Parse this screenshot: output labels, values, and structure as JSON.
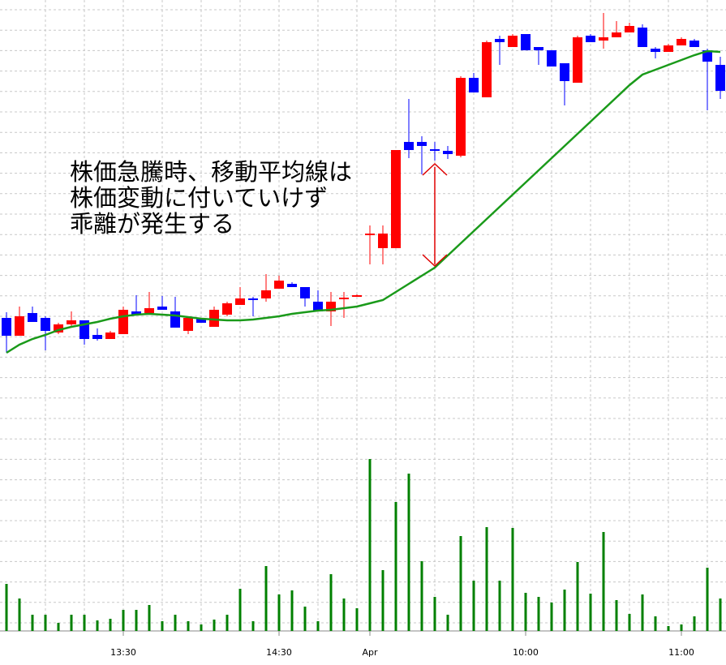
{
  "chart_data": {
    "type": "candlestick",
    "categories": [
      null,
      null,
      null,
      null,
      null,
      null,
      null,
      null,
      null,
      "13:30",
      null,
      null,
      null,
      null,
      null,
      null,
      null,
      null,
      null,
      null,
      null,
      "14:30",
      null,
      null,
      null,
      null,
      null,
      null,
      "Apr",
      null,
      null,
      null,
      null,
      null,
      null,
      null,
      null,
      null,
      null,
      null,
      "10:00",
      null,
      null,
      null,
      null,
      null,
      null,
      null,
      null,
      null,
      null,
      null,
      "11:00",
      null,
      null,
      null
    ],
    "open": [
      138,
      116,
      144,
      138,
      120,
      130,
      135,
      117,
      112,
      118,
      146,
      144,
      152,
      146,
      122,
      137,
      127,
      142,
      154,
      162,
      162,
      174,
      180,
      176,
      158,
      146,
      161,
      165,
      240,
      224,
      224,
      355,
      355,
      346,
      344,
      338,
      434,
      410,
      482,
      472,
      488,
      472,
      468,
      452,
      428,
      486,
      480,
      484,
      490,
      496,
      470,
      466,
      474,
      480,
      468,
      450
    ],
    "high": [
      145,
      152,
      152,
      140,
      132,
      146,
      135,
      125,
      122,
      152,
      166,
      170,
      165,
      164,
      138,
      137,
      152,
      158,
      176,
      164,
      192,
      190,
      182,
      176,
      172,
      170,
      170,
      167,
      252,
      252,
      345,
      408,
      362,
      355,
      350,
      436,
      440,
      480,
      486,
      488,
      488,
      472,
      468,
      452,
      486,
      488,
      514,
      504,
      502,
      500,
      472,
      476,
      484,
      482,
      470,
      460
    ],
    "low": [
      95,
      116,
      133,
      98,
      118,
      126,
      105,
      110,
      112,
      118,
      142,
      144,
      148,
      126,
      118,
      132,
      127,
      140,
      154,
      140,
      158,
      174,
      176,
      152,
      146,
      128,
      138,
      164,
      204,
      204,
      224,
      335,
      315,
      332,
      334,
      336,
      416,
      410,
      450,
      472,
      468,
      450,
      448,
      400,
      428,
      478,
      470,
      484,
      490,
      472,
      458,
      466,
      474,
      472,
      394,
      408
    ],
    "close": [
      116,
      140,
      133,
      122,
      130,
      135,
      112,
      112,
      120,
      148,
      142,
      150,
      148,
      126,
      138,
      132,
      148,
      156,
      162,
      160,
      172,
      184,
      176,
      162,
      146,
      158,
      163,
      166,
      242,
      242,
      345,
      345,
      350,
      344,
      340,
      434,
      416,
      478,
      478,
      486,
      468,
      468,
      448,
      430,
      484,
      478,
      484,
      490,
      498,
      472,
      466,
      474,
      482,
      472,
      454,
      418
    ],
    "up_color": "#ff0000",
    "down_color": "#0000ff",
    "ylim": [
      0,
      530
    ],
    "ma": {
      "color": "#1a9a1a",
      "values": [
        95,
        105,
        112,
        117,
        123,
        127,
        130,
        133,
        137,
        140,
        142,
        143,
        142,
        141,
        139,
        137,
        136,
        135,
        135,
        136,
        138,
        140,
        143,
        145,
        147,
        148,
        150,
        152,
        156,
        160,
        170,
        180,
        190,
        200,
        215,
        230,
        245,
        260,
        275,
        290,
        305,
        320,
        335,
        350,
        365,
        380,
        395,
        410,
        425,
        438,
        444,
        450,
        456,
        462,
        467,
        466
      ]
    },
    "volume": {
      "color": "#008000",
      "ylim": [
        0,
        238
      ],
      "values": [
        58,
        40,
        20,
        20,
        10,
        20,
        20,
        13,
        15,
        26,
        26,
        32,
        12,
        20,
        12,
        8,
        14,
        20,
        52,
        12,
        80,
        45,
        50,
        30,
        12,
        70,
        40,
        28,
        212,
        75,
        159,
        194,
        86,
        42,
        20,
        117,
        62,
        128,
        62,
        127,
        47,
        42,
        35,
        51,
        85,
        46,
        122,
        38,
        21,
        45,
        18,
        6,
        8,
        18,
        78,
        40
      ]
    },
    "annotation": [
      "株価急騰時、移動平均線は",
      "株価変動に付いていけず",
      "乖離が発生する"
    ]
  }
}
